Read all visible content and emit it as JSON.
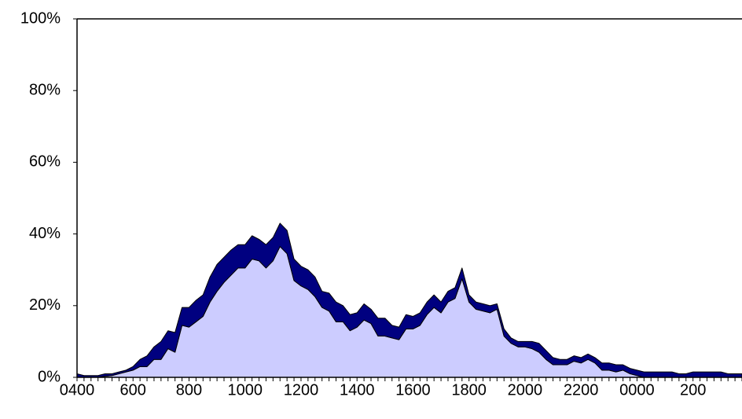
{
  "chart_data": {
    "type": "stacked_area",
    "categories": [
      "0400",
      null,
      null,
      null,
      null,
      null,
      null,
      null,
      "600",
      null,
      null,
      null,
      null,
      null,
      null,
      null,
      "800",
      null,
      null,
      null,
      null,
      null,
      null,
      null,
      "1000",
      null,
      null,
      null,
      null,
      null,
      null,
      null,
      "1200",
      null,
      null,
      null,
      null,
      null,
      null,
      null,
      "1400",
      null,
      null,
      null,
      null,
      null,
      null,
      null,
      "1600",
      null,
      null,
      null,
      null,
      null,
      null,
      null,
      "1800",
      null,
      null,
      null,
      null,
      null,
      null,
      null,
      "2000",
      null,
      null,
      null,
      null,
      null,
      null,
      null,
      "2200",
      null,
      null,
      null,
      null,
      null,
      null,
      null,
      "0000",
      null,
      null,
      null,
      null,
      null,
      null,
      null,
      "200",
      null,
      null,
      null,
      null,
      null,
      null,
      null
    ],
    "series": [
      {
        "color": "#ccccff",
        "values": [
          0,
          0,
          0,
          0,
          0.3,
          0.5,
          1,
          1.5,
          2,
          3,
          3,
          5,
          5,
          8,
          7,
          14.5,
          14,
          15.5,
          17,
          21,
          24,
          26.5,
          28.5,
          30.5,
          30.5,
          33,
          32.5,
          30.5,
          32.5,
          36.5,
          34.5,
          27,
          25.5,
          24.5,
          22.5,
          19.5,
          18.5,
          15.5,
          15.5,
          13,
          14,
          16,
          15,
          11.5,
          11.5,
          11,
          10.5,
          13.5,
          13.5,
          14.5,
          17.5,
          19.5,
          18,
          21,
          22,
          27.5,
          21,
          19,
          18.5,
          18,
          19,
          11.5,
          9.5,
          8.5,
          8.5,
          8,
          7,
          5,
          3.5,
          3.5,
          3.5,
          4.5,
          4,
          5,
          4,
          2,
          2,
          1.5,
          2,
          1,
          0.5,
          0,
          0,
          0,
          0,
          0,
          0,
          0,
          0,
          0,
          0,
          0,
          0,
          0,
          0,
          0
        ]
      },
      {
        "color": "#000080",
        "values": [
          1,
          0.5,
          0.5,
          0.5,
          0.7,
          0.5,
          0.5,
          0.5,
          1,
          2,
          3,
          3.5,
          5,
          5,
          5.5,
          5,
          5.5,
          6,
          6,
          7,
          7.5,
          7,
          7,
          6.5,
          6.5,
          6.5,
          6,
          6.5,
          6.5,
          6.5,
          6.5,
          6,
          5.5,
          5.5,
          5.5,
          4.5,
          5,
          5.5,
          4.5,
          4.5,
          4,
          4.5,
          4,
          5,
          5,
          3.5,
          3.5,
          4,
          3.5,
          3.5,
          3.5,
          3.5,
          3,
          3,
          3,
          3,
          2,
          2,
          2,
          2,
          1.5,
          2,
          1.5,
          1.5,
          1.5,
          2,
          2.5,
          2.5,
          2,
          1.5,
          1.5,
          1.5,
          1.5,
          1.5,
          1.5,
          2,
          2,
          2,
          1.5,
          1.5,
          1.5,
          1.5,
          1.5,
          1.5,
          1.5,
          1.5,
          1,
          1,
          1.5,
          1.5,
          1.5,
          1.5,
          1.5,
          1,
          1,
          1
        ]
      }
    ],
    "ylim": [
      0,
      100
    ],
    "yticks": [
      {
        "value": 0,
        "label": "0%"
      },
      {
        "value": 20,
        "label": "20%"
      },
      {
        "value": 40,
        "label": "40%"
      },
      {
        "value": 60,
        "label": "60%"
      },
      {
        "value": 80,
        "label": "80%"
      },
      {
        "value": 100,
        "label": "100%"
      }
    ],
    "grid": false
  }
}
